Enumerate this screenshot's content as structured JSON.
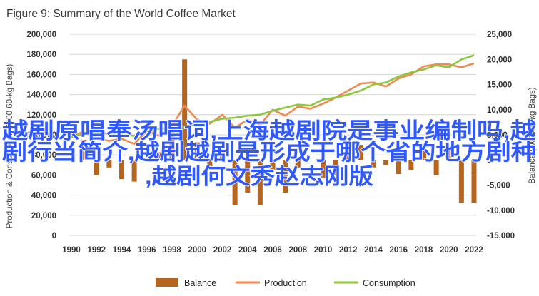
{
  "chart_data": {
    "type": "bar+line",
    "title": "Figure 9: Summary of the World Coffee Market",
    "ylabel_left": "Production & Consumption ('000 60-kg Bags)",
    "ylabel_right": "Balance ('000 60-kg Bags)",
    "ylim_left": [
      0,
      200000
    ],
    "ylim_right": [
      -15000,
      25000
    ],
    "left_ticks": [
      "0",
      "20,000",
      "40,000",
      "60,000",
      "80,000",
      "100,000",
      "120,000",
      "140,000",
      "160,000",
      "180,000",
      "200,000"
    ],
    "right_ticks": [
      "-15,000",
      "-10,000",
      "-5,000",
      "0",
      "5,000",
      "10,000",
      "15,000",
      "20,000",
      "25,000"
    ],
    "x_ticks": [
      "1990",
      "1992",
      "1994",
      "1996",
      "1998",
      "2000",
      "2002",
      "2004",
      "2006",
      "2008",
      "2010",
      "2012",
      "2014",
      "2016",
      "2018",
      "2020",
      "2022"
    ],
    "years": [
      1990,
      1991,
      1992,
      1993,
      1994,
      1995,
      1996,
      1997,
      1998,
      1999,
      2000,
      2001,
      2002,
      2003,
      2004,
      2005,
      2006,
      2007,
      2008,
      2009,
      2010,
      2011,
      2012,
      2013,
      2014,
      2015,
      2016,
      2017,
      2018,
      2019,
      2020,
      2021,
      2022
    ],
    "colors": {
      "balance": "#b5651d",
      "production": "#f08a52",
      "consumption": "#8dc63f"
    },
    "series": [
      {
        "name": "Balance",
        "axis": "right",
        "values": [
          0,
          4000,
          -3000,
          -1500,
          -3800,
          -4300,
          0,
          1500,
          6000,
          20000,
          3500,
          -2000,
          1500,
          -9000,
          -6500,
          -9000,
          -2000,
          -6500,
          -1500,
          0,
          -3500,
          -3000,
          1500,
          3000,
          -1500,
          -1000,
          -2800,
          -2000,
          2200,
          -3000,
          2000,
          -8500,
          -8500
        ]
      },
      {
        "name": "Production",
        "axis": "left",
        "values": [
          99000,
          103000,
          96000,
          94000,
          96000,
          91000,
          104000,
          99000,
          109000,
          129000,
          115000,
          111000,
          120000,
          107000,
          115000,
          110000,
          125000,
          119000,
          128000,
          126000,
          131000,
          137000,
          144000,
          151000,
          152000,
          148000,
          156000,
          160000,
          168000,
          170000,
          170000,
          167000,
          171000
        ]
      },
      {
        "name": "Consumption",
        "axis": "left",
        "values": [
          98000,
          101000,
          103000,
          101000,
          100000,
          99000,
          104000,
          106000,
          107000,
          108000,
          111000,
          113000,
          116000,
          117000,
          119000,
          120000,
          124000,
          127000,
          130000,
          129000,
          135000,
          137000,
          140000,
          144000,
          150000,
          152000,
          158000,
          162000,
          165000,
          169000,
          167000,
          175000,
          179000
        ]
      }
    ],
    "legend": [
      "Balance",
      "Production",
      "Consumption"
    ],
    "legend_position": "bottom"
  },
  "overlay_text": [
    "越剧原唱奉汤唱词,上海越剧院是事业编制吗,越",
    "剧行当简介,越剧越剧是形成于哪个省的地方剧种",
    ",越剧何文秀赵志刚版"
  ]
}
